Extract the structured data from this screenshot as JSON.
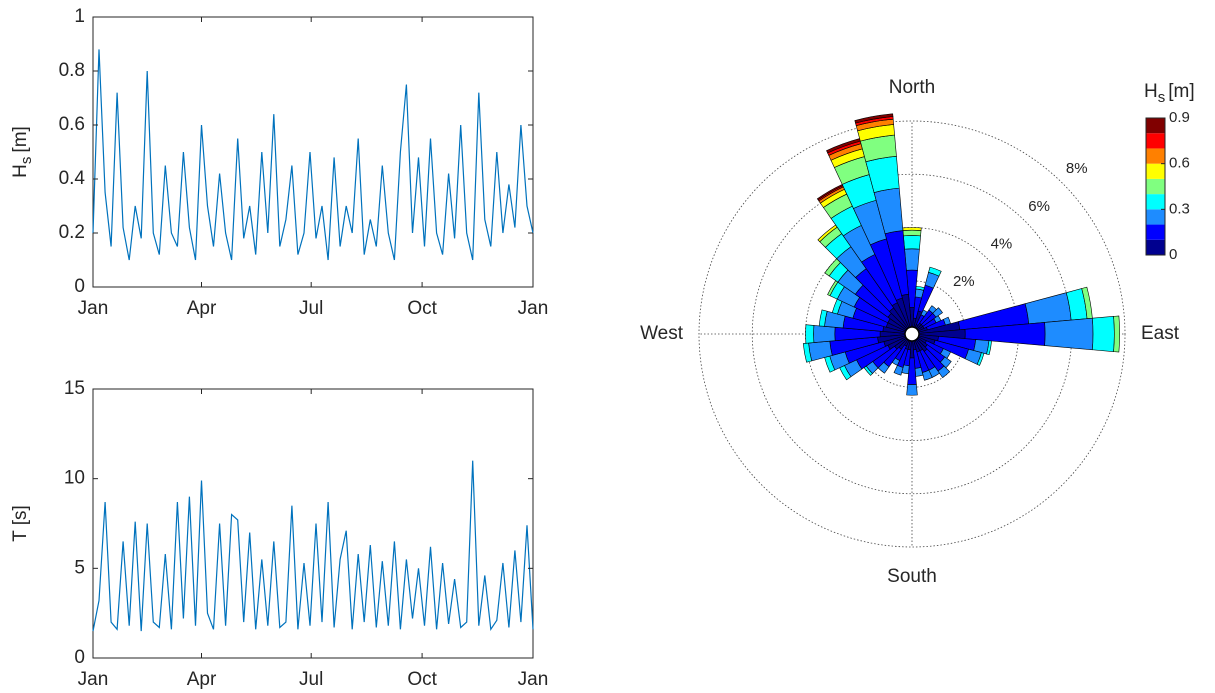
{
  "chart_data": [
    {
      "type": "line",
      "x": [
        0,
        5,
        10,
        15,
        20,
        25,
        30,
        35,
        40,
        45,
        50,
        55,
        60,
        65,
        70,
        75,
        80,
        85,
        90,
        95,
        100,
        105,
        110,
        115,
        120,
        125,
        130,
        135,
        140,
        145,
        150,
        155,
        160,
        165,
        170,
        175,
        180,
        185,
        190,
        195,
        200,
        205,
        210,
        215,
        220,
        225,
        230,
        235,
        240,
        245,
        250,
        255,
        260,
        265,
        270,
        275,
        280,
        285,
        290,
        295,
        300,
        305,
        310,
        315,
        320,
        325,
        330,
        335,
        340,
        345,
        350,
        355,
        360,
        365
      ],
      "values": [
        0.2,
        0.88,
        0.35,
        0.15,
        0.72,
        0.22,
        0.1,
        0.3,
        0.18,
        0.8,
        0.2,
        0.12,
        0.45,
        0.2,
        0.15,
        0.5,
        0.22,
        0.1,
        0.6,
        0.3,
        0.15,
        0.42,
        0.2,
        0.1,
        0.55,
        0.18,
        0.3,
        0.12,
        0.5,
        0.2,
        0.64,
        0.15,
        0.25,
        0.45,
        0.12,
        0.2,
        0.5,
        0.18,
        0.3,
        0.1,
        0.48,
        0.15,
        0.3,
        0.2,
        0.55,
        0.12,
        0.25,
        0.15,
        0.45,
        0.2,
        0.1,
        0.5,
        0.75,
        0.2,
        0.48,
        0.15,
        0.55,
        0.2,
        0.12,
        0.42,
        0.18,
        0.6,
        0.2,
        0.1,
        0.72,
        0.25,
        0.15,
        0.5,
        0.2,
        0.38,
        0.22,
        0.6,
        0.3,
        0.2
      ],
      "color": "#0072bd",
      "xlim": [
        0,
        365
      ],
      "ylim": [
        0,
        1
      ],
      "xticks": [
        {
          "value": 0,
          "label": "Jan"
        },
        {
          "value": 90,
          "label": "Apr"
        },
        {
          "value": 181,
          "label": "Jul"
        },
        {
          "value": 273,
          "label": "Oct"
        },
        {
          "value": 365,
          "label": "Jan"
        }
      ],
      "yticks": [
        0,
        0.2,
        0.4,
        0.6,
        0.8,
        1
      ],
      "ylabel": {
        "main": "H",
        "sub": "s",
        "unit": "[m]"
      }
    },
    {
      "type": "line",
      "x": [
        0,
        5,
        10,
        15,
        20,
        25,
        30,
        35,
        40,
        45,
        50,
        55,
        60,
        65,
        70,
        75,
        80,
        85,
        90,
        95,
        100,
        105,
        110,
        115,
        120,
        125,
        130,
        135,
        140,
        145,
        150,
        155,
        160,
        165,
        170,
        175,
        180,
        185,
        190,
        195,
        200,
        205,
        210,
        215,
        220,
        225,
        230,
        235,
        240,
        245,
        250,
        255,
        260,
        265,
        270,
        275,
        280,
        285,
        290,
        295,
        300,
        305,
        310,
        315,
        320,
        325,
        330,
        335,
        340,
        345,
        350,
        355,
        360,
        365
      ],
      "values": [
        1.5,
        3.2,
        8.7,
        2,
        1.6,
        6.5,
        1.8,
        7.6,
        1.5,
        7.5,
        2,
        1.7,
        5.8,
        1.6,
        8.7,
        2.2,
        9,
        1.8,
        9.9,
        2.5,
        1.6,
        7.5,
        1.8,
        8,
        7.7,
        2,
        7,
        1.6,
        5.5,
        1.8,
        6.5,
        1.7,
        2,
        8.5,
        1.6,
        5.3,
        1.8,
        7.5,
        2,
        8.7,
        1.7,
        5.5,
        7.1,
        1.6,
        5.8,
        2,
        6.3,
        1.7,
        5.4,
        1.8,
        6.5,
        1.6,
        5.5,
        2.2,
        5,
        1.8,
        6.2,
        1.6,
        5.3,
        1.9,
        4.4,
        1.7,
        2,
        11,
        1.8,
        4.6,
        1.6,
        2.1,
        5.3,
        1.7,
        6,
        2,
        7.4,
        1.6
      ],
      "color": "#0072bd",
      "xlim": [
        0,
        365
      ],
      "ylim": [
        0,
        15
      ],
      "xticks": [
        {
          "value": 0,
          "label": "Jan"
        },
        {
          "value": 90,
          "label": "Apr"
        },
        {
          "value": 181,
          "label": "Jul"
        },
        {
          "value": 273,
          "label": "Oct"
        },
        {
          "value": 365,
          "label": "Jan"
        }
      ],
      "yticks": [
        0,
        5,
        10,
        15
      ],
      "ylabel": {
        "main": "T [s]"
      }
    },
    {
      "type": "rose",
      "x": [
        0,
        10,
        20,
        30,
        40,
        50,
        60,
        70,
        80,
        90,
        100,
        110,
        120,
        130,
        140,
        150,
        160,
        170,
        180,
        190,
        200,
        210,
        220,
        230,
        240,
        250,
        260,
        270,
        280,
        290,
        300,
        310,
        320,
        330,
        340,
        350
      ],
      "series": [
        {
          "color": "#00008f",
          "values": [
            1.0,
            0.6,
            0.9,
            0.4,
            0.5,
            0.5,
            0.5,
            0.6,
            1.8,
            2.0,
            1.0,
            0.9,
            0.6,
            0.7,
            0.8,
            0.7,
            0.7,
            0.6,
            0.9,
            0.6,
            0.6,
            0.5,
            0.7,
            0.8,
            1.0,
            1.1,
            1.3,
            1.2,
            1.1,
            1.0,
            1.0,
            1.1,
            1.2,
            1.3,
            1.4,
            1.5
          ]
        },
        {
          "color": "#0000ff",
          "values": [
            1.4,
            0.8,
            1.0,
            0.4,
            0.6,
            0.6,
            0.5,
            0.7,
            2.6,
            3.0,
            1.4,
            1.3,
            0.7,
            0.8,
            0.9,
            0.8,
            0.8,
            0.7,
            1.0,
            0.6,
            0.7,
            0.6,
            0.8,
            1.0,
            1.3,
            1.5,
            1.8,
            1.7,
            1.5,
            1.3,
            1.4,
            1.5,
            1.8,
            2.0,
            2.3,
            2.4
          ]
        },
        {
          "color": "#1e8cff",
          "values": [
            0.8,
            0.3,
            0.5,
            0.2,
            0.2,
            0.3,
            0.2,
            0.2,
            1.6,
            1.8,
            0.5,
            0.5,
            0.3,
            0.3,
            0.3,
            0.3,
            0.3,
            0.3,
            0.4,
            0.3,
            0.3,
            0.2,
            0.3,
            0.3,
            0.5,
            0.6,
            0.8,
            0.8,
            0.7,
            0.6,
            0.7,
            0.8,
            1.0,
            1.2,
            1.5,
            1.6
          ]
        },
        {
          "color": "#00ffff",
          "values": [
            0.5,
            0.1,
            0.2,
            0,
            0,
            0,
            0,
            0,
            0.6,
            0.8,
            0.1,
            0.1,
            0,
            0,
            0,
            0,
            0,
            0,
            0,
            0,
            0,
            0,
            0,
            0.1,
            0.2,
            0.2,
            0.2,
            0.3,
            0.2,
            0.2,
            0.3,
            0.4,
            0.6,
            0.8,
            1.0,
            1.2
          ]
        },
        {
          "color": "#80ff80",
          "values": [
            0.2,
            0,
            0,
            0,
            0,
            0,
            0,
            0,
            0.2,
            0.2,
            0,
            0,
            0,
            0,
            0,
            0,
            0,
            0,
            0,
            0,
            0,
            0,
            0,
            0,
            0,
            0,
            0,
            0,
            0,
            0,
            0.1,
            0.2,
            0.3,
            0.5,
            0.7,
            0.8
          ]
        },
        {
          "color": "#ffff00",
          "values": [
            0.1,
            0,
            0,
            0,
            0,
            0,
            0,
            0,
            0,
            0,
            0,
            0,
            0,
            0,
            0,
            0,
            0,
            0,
            0,
            0,
            0,
            0,
            0,
            0,
            0,
            0,
            0,
            0,
            0,
            0,
            0,
            0,
            0.1,
            0.2,
            0.3,
            0.4
          ]
        },
        {
          "color": "#ff8000",
          "values": [
            0,
            0,
            0,
            0,
            0,
            0,
            0,
            0,
            0,
            0,
            0,
            0,
            0,
            0,
            0,
            0,
            0,
            0,
            0,
            0,
            0,
            0,
            0,
            0,
            0,
            0,
            0,
            0,
            0,
            0,
            0,
            0,
            0,
            0.1,
            0.2,
            0.2
          ]
        },
        {
          "color": "#ff0000",
          "values": [
            0,
            0,
            0,
            0,
            0,
            0,
            0,
            0,
            0,
            0,
            0,
            0,
            0,
            0,
            0,
            0,
            0,
            0,
            0,
            0,
            0,
            0,
            0,
            0,
            0,
            0,
            0,
            0,
            0,
            0,
            0,
            0,
            0,
            0.05,
            0.1,
            0.1
          ]
        },
        {
          "color": "#800000",
          "values": [
            0,
            0,
            0,
            0,
            0,
            0,
            0,
            0,
            0,
            0,
            0,
            0,
            0,
            0,
            0,
            0,
            0,
            0,
            0,
            0,
            0,
            0,
            0,
            0,
            0,
            0,
            0,
            0,
            0,
            0,
            0,
            0,
            0,
            0.05,
            0.1,
            0.1
          ]
        }
      ],
      "bins": [
        0,
        0.1,
        0.2,
        0.3,
        0.4,
        0.5,
        0.6,
        0.7,
        0.8,
        0.9
      ],
      "cticks": [
        0,
        0.3,
        0.6,
        0.9
      ],
      "rlim": [
        0,
        8
      ],
      "rticks": [
        {
          "value": 2,
          "label": "2%"
        },
        {
          "value": 4,
          "label": "4%"
        },
        {
          "value": 6,
          "label": "6%"
        },
        {
          "value": 8,
          "label": "8%"
        }
      ],
      "compass": [
        "North",
        "East",
        "South",
        "West"
      ],
      "colorbar_label": {
        "main": "H",
        "sub": "s",
        "unit": "[m]"
      }
    }
  ]
}
